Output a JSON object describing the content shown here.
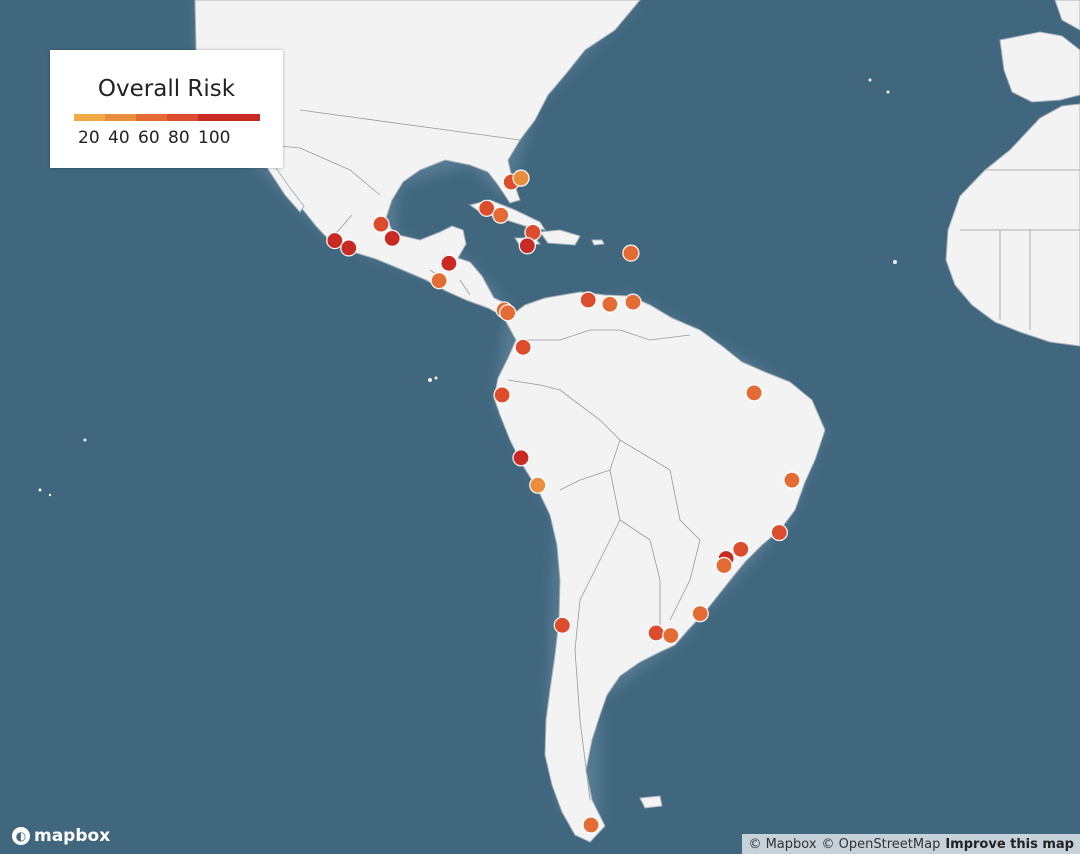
{
  "legend": {
    "title": "Overall Risk",
    "ticks": [
      "20",
      "40",
      "60",
      "80",
      "100"
    ],
    "colors": [
      "#f0aa45",
      "#ea8e3d",
      "#e46c34",
      "#db4d2d",
      "#c92b24"
    ]
  },
  "ocean_color": "#41677f",
  "land_color": "#f3f3f3",
  "branding": {
    "logo_text": "mapbox"
  },
  "attribution": {
    "mapbox": "© Mapbox",
    "osm": "© OpenStreetMap",
    "improve": "Improve this map"
  },
  "markers": [
    {
      "lat": 26.6,
      "lon": -78.4,
      "risk": 75
    },
    {
      "lat": 27.1,
      "lon": -77.0,
      "risk": 30
    },
    {
      "lat": 23.2,
      "lon": -81.9,
      "risk": 70
    },
    {
      "lat": 22.3,
      "lon": -79.9,
      "risk": 55
    },
    {
      "lat": 20.0,
      "lon": -75.3,
      "risk": 70
    },
    {
      "lat": 18.2,
      "lon": -76.1,
      "risk": 90
    },
    {
      "lat": 21.1,
      "lon": -97.0,
      "risk": 70
    },
    {
      "lat": 19.2,
      "lon": -95.4,
      "risk": 90
    },
    {
      "lat": 18.9,
      "lon": -103.6,
      "risk": 90
    },
    {
      "lat": 17.9,
      "lon": -101.6,
      "risk": 90
    },
    {
      "lat": 15.8,
      "lon": -87.3,
      "risk": 95
    },
    {
      "lat": 13.4,
      "lon": -88.7,
      "risk": 50
    },
    {
      "lat": 17.2,
      "lon": -61.3,
      "risk": 55
    },
    {
      "lat": 10.7,
      "lon": -67.4,
      "risk": 80
    },
    {
      "lat": 10.1,
      "lon": -64.3,
      "risk": 55
    },
    {
      "lat": 10.4,
      "lon": -61.0,
      "risk": 55
    },
    {
      "lat": 9.3,
      "lon": -79.4,
      "risk": 60
    },
    {
      "lat": 8.9,
      "lon": -78.9,
      "risk": 55
    },
    {
      "lat": 4.0,
      "lon": -76.7,
      "risk": 70
    },
    {
      "lat": -2.8,
      "lon": -79.7,
      "risk": 70
    },
    {
      "lat": -11.7,
      "lon": -77.0,
      "risk": 95
    },
    {
      "lat": -15.5,
      "lon": -74.6,
      "risk": 30
    },
    {
      "lat": -33.6,
      "lon": -71.1,
      "risk": 75
    },
    {
      "lat": -53.9,
      "lon": -67.0,
      "risk": 55
    },
    {
      "lat": -2.5,
      "lon": -43.7,
      "risk": 55
    },
    {
      "lat": -14.8,
      "lon": -38.3,
      "risk": 55
    },
    {
      "lat": -21.9,
      "lon": -40.1,
      "risk": 70
    },
    {
      "lat": -24.1,
      "lon": -45.6,
      "risk": 70
    },
    {
      "lat": -25.3,
      "lon": -47.7,
      "risk": 95
    },
    {
      "lat": -26.2,
      "lon": -48.0,
      "risk": 55
    },
    {
      "lat": -32.2,
      "lon": -51.4,
      "risk": 55
    },
    {
      "lat": -34.5,
      "lon": -57.7,
      "risk": 75
    },
    {
      "lat": -34.8,
      "lon": -55.6,
      "risk": 55
    }
  ]
}
